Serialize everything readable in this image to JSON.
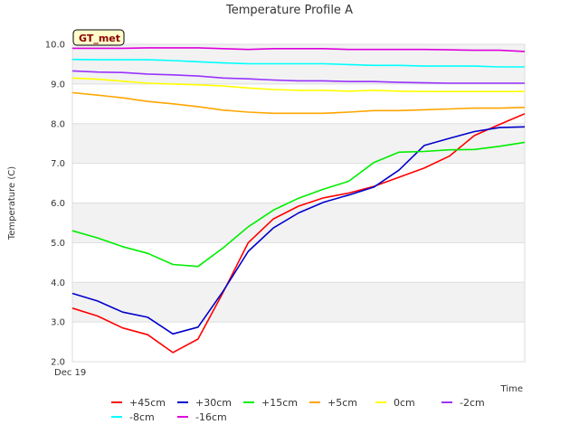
{
  "chart_data": {
    "type": "line",
    "title": "Temperature Profile A",
    "xlabel": "Time",
    "ylabel": "Temperature (C)",
    "x_tick_label": "Dec 19",
    "badge": "GT_met",
    "ylim": [
      2.0,
      10.0
    ],
    "yticks": [
      "2.0",
      "3.0",
      "4.0",
      "5.0",
      "6.0",
      "7.0",
      "8.0",
      "9.0",
      "10.0"
    ],
    "grid": true,
    "legend_position": "bottom",
    "x": [
      0,
      1,
      2,
      3,
      4,
      5,
      6,
      7,
      8,
      9,
      10,
      11,
      12,
      13,
      14,
      15,
      16,
      17,
      18
    ],
    "series": [
      {
        "name": "+45cm",
        "color": "#ff0000",
        "values": [
          3.35,
          3.15,
          2.85,
          2.68,
          2.23,
          2.57,
          3.75,
          5.0,
          5.6,
          5.92,
          6.13,
          6.25,
          6.42,
          6.65,
          6.88,
          7.18,
          7.7,
          7.98,
          8.25
        ]
      },
      {
        "name": "+30cm",
        "color": "#0000cc",
        "values": [
          3.72,
          3.53,
          3.25,
          3.12,
          2.7,
          2.87,
          3.78,
          4.78,
          5.37,
          5.75,
          6.02,
          6.2,
          6.4,
          6.83,
          7.45,
          7.63,
          7.8,
          7.9,
          7.92
        ]
      },
      {
        "name": "+15cm",
        "color": "#00ee00",
        "values": [
          5.3,
          5.12,
          4.9,
          4.73,
          4.45,
          4.4,
          4.87,
          5.4,
          5.82,
          6.12,
          6.35,
          6.55,
          7.02,
          7.28,
          7.3,
          7.34,
          7.35,
          7.43,
          7.53
        ]
      },
      {
        "name": "+5cm",
        "color": "#ffa500",
        "values": [
          8.78,
          8.72,
          8.65,
          8.56,
          8.5,
          8.43,
          8.34,
          8.29,
          8.26,
          8.26,
          8.26,
          8.29,
          8.33,
          8.33,
          8.35,
          8.37,
          8.39,
          8.39,
          8.41
        ]
      },
      {
        "name": "0cm",
        "color": "#ffff00",
        "values": [
          9.15,
          9.12,
          9.07,
          9.02,
          9.0,
          8.98,
          8.95,
          8.9,
          8.86,
          8.84,
          8.84,
          8.82,
          8.84,
          8.82,
          8.81,
          8.81,
          8.81,
          8.81,
          8.81
        ]
      },
      {
        "name": "-2cm",
        "color": "#9933ff",
        "values": [
          9.33,
          9.3,
          9.29,
          9.25,
          9.23,
          9.2,
          9.15,
          9.13,
          9.1,
          9.08,
          9.08,
          9.06,
          9.06,
          9.04,
          9.03,
          9.02,
          9.02,
          9.02,
          9.02
        ]
      },
      {
        "name": "-8cm",
        "color": "#00ffff",
        "values": [
          9.62,
          9.61,
          9.61,
          9.61,
          9.59,
          9.56,
          9.53,
          9.51,
          9.51,
          9.51,
          9.51,
          9.49,
          9.47,
          9.47,
          9.45,
          9.45,
          9.45,
          9.43,
          9.43
        ]
      },
      {
        "name": "-16cm",
        "color": "#dd00dd",
        "values": [
          9.9,
          9.9,
          9.9,
          9.91,
          9.91,
          9.91,
          9.89,
          9.87,
          9.89,
          9.89,
          9.89,
          9.87,
          9.87,
          9.87,
          9.87,
          9.86,
          9.85,
          9.85,
          9.82
        ]
      }
    ]
  }
}
